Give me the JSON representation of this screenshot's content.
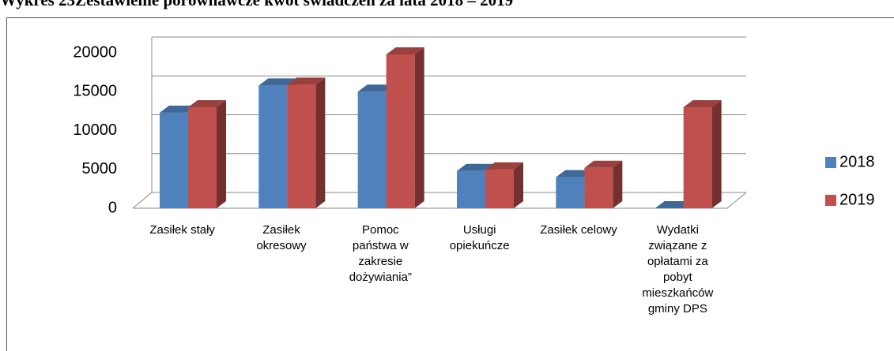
{
  "chart_data": {
    "type": "bar3d",
    "title": "Wykres 23Zestawienie porównawcze kwot świadczeń za lata 2018 – 2019",
    "categories": [
      "Zasiłek stały",
      "Zasiłek okresowy",
      "Pomoc państwa w zakresie dożywiania”",
      "Usługi opiekuńcze",
      "Zasiłek celowy",
      "Wydatki związane z opłatami za pobyt mieszkańców gminy DPS"
    ],
    "series": [
      {
        "name": "2018",
        "color": "#4f81bd",
        "values": [
          12300,
          15800,
          15000,
          4800,
          4000,
          0
        ]
      },
      {
        "name": "2019",
        "color": "#c0504d",
        "values": [
          13000,
          15900,
          19800,
          5000,
          5200,
          13000
        ]
      }
    ],
    "ylim": [
      0,
      20000
    ],
    "yticks": [
      0,
      5000,
      10000,
      15000,
      20000
    ],
    "grid": true,
    "legend": "right"
  }
}
